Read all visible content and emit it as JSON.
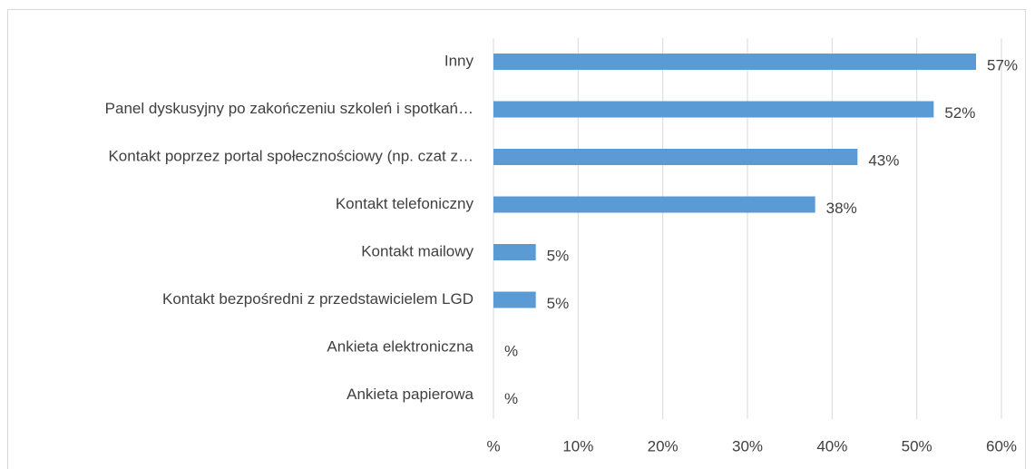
{
  "chart_data": {
    "type": "bar",
    "orientation": "horizontal",
    "categories": [
      "Inny",
      "Panel dyskusyjny po zakończeniu szkoleń i spotkań…",
      "Kontakt poprzez portal społecznościowy (np. czat z…",
      "Kontakt telefoniczny",
      "Kontakt mailowy",
      "Kontakt bezpośredni z przedstawicielem LGD",
      "Ankieta elektroniczna",
      "Ankieta papierowa"
    ],
    "values": [
      57,
      52,
      43,
      38,
      5,
      5,
      0,
      0
    ],
    "value_labels": [
      "57%",
      "52%",
      "43%",
      "38%",
      "5%",
      "5%",
      "%",
      "%"
    ],
    "color": "#5b9bd5",
    "xlim": [
      0,
      60
    ],
    "xticks": [
      {
        "value": 0,
        "label": "%"
      },
      {
        "value": 10,
        "label": "10%"
      },
      {
        "value": 20,
        "label": "20%"
      },
      {
        "value": 30,
        "label": "30%"
      },
      {
        "value": 40,
        "label": "40%"
      },
      {
        "value": 50,
        "label": "50%"
      },
      {
        "value": 60,
        "label": "60%"
      }
    ],
    "grid": true
  }
}
